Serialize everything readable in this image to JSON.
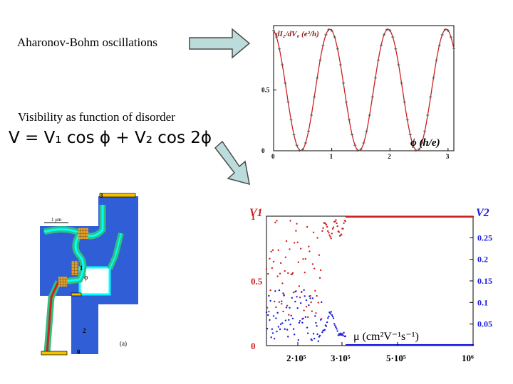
{
  "slide": {
    "label_ab": "Aharonov-Bohm oscillations",
    "label_visibility": "Visibility as function of disorder",
    "formula": "V = V₁ cos ϕ + V₂ cos 2ϕ"
  },
  "device": {
    "scale_label": "1 μm",
    "terminal_labels": [
      "3",
      "1",
      "2",
      "0"
    ],
    "flux_label": "ϕ",
    "panel_label": "(a)"
  },
  "chart_data": [
    {
      "type": "line",
      "title": "",
      "ylabel": "dI₂/dV₀ (e²/h)",
      "xlabel": "ϕ (h/e)",
      "xlim": [
        0,
        3.1
      ],
      "ylim": [
        0,
        1.03
      ],
      "xticks": [
        0,
        1,
        2,
        3
      ],
      "yticks": [
        0,
        0.5
      ],
      "ytick_labels": [
        "0",
        "0.5"
      ],
      "function": "0.5 + 0.5*cos(2*pi*x + 0.2)",
      "series": [
        {
          "name": "",
          "color": "#cc2020",
          "style": "line+markers"
        }
      ]
    },
    {
      "type": "scatter",
      "xlabel": "μ (cm²V⁻¹s⁻¹)",
      "left_axis_label": "V1",
      "right_axis_label": "V2",
      "xlim": [
        150000,
        1000000
      ],
      "left_ylim": [
        0,
        1
      ],
      "right_ylim": [
        0,
        0.3
      ],
      "xtick_labels": [
        "2·10⁵",
        "3·10⁵",
        "5·10⁵",
        "10⁶"
      ],
      "xticks": [
        200000,
        300000,
        500000,
        1000000
      ],
      "left_ytick_labels": [
        "0",
        "0.5",
        "1"
      ],
      "right_ytick_labels": [
        "0.05",
        "0.1",
        "0.15",
        "0.2",
        "0.25"
      ],
      "series": [
        {
          "name": "V1",
          "color": "#cc2020",
          "axis": "left"
        },
        {
          "name": "V2",
          "color": "#1a1adc",
          "axis": "right"
        }
      ]
    }
  ]
}
